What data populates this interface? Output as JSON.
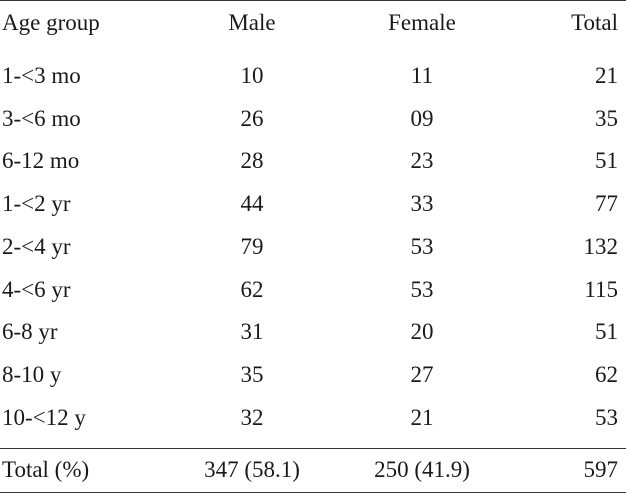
{
  "table": {
    "headers": {
      "age": "Age group",
      "male": "Male",
      "female": "Female",
      "total": "Total"
    },
    "rows": [
      {
        "age": "1-<3 mo",
        "male": "10",
        "female": "11",
        "total": "21"
      },
      {
        "age": "3-<6 mo",
        "male": "26",
        "female": "09",
        "total": "35"
      },
      {
        "age": "6-12 mo",
        "male": "28",
        "female": "23",
        "total": "51"
      },
      {
        "age": "1-<2 yr",
        "male": "44",
        "female": "33",
        "total": "77"
      },
      {
        "age": "2-<4 yr",
        "male": "79",
        "female": "53",
        "total": "132"
      },
      {
        "age": "4-<6 yr",
        "male": "62",
        "female": "53",
        "total": "115"
      },
      {
        "age": "6-8 yr",
        "male": "31",
        "female": "20",
        "total": "51"
      },
      {
        "age": "8-10 y",
        "male": "35",
        "female": "27",
        "total": "62"
      },
      {
        "age": "10-<12 y",
        "male": "32",
        "female": "21",
        "total": "53"
      }
    ],
    "footer": {
      "age": "Total (%)",
      "male": "347 (58.1)",
      "female": "250 (41.9)",
      "total": "597"
    }
  }
}
